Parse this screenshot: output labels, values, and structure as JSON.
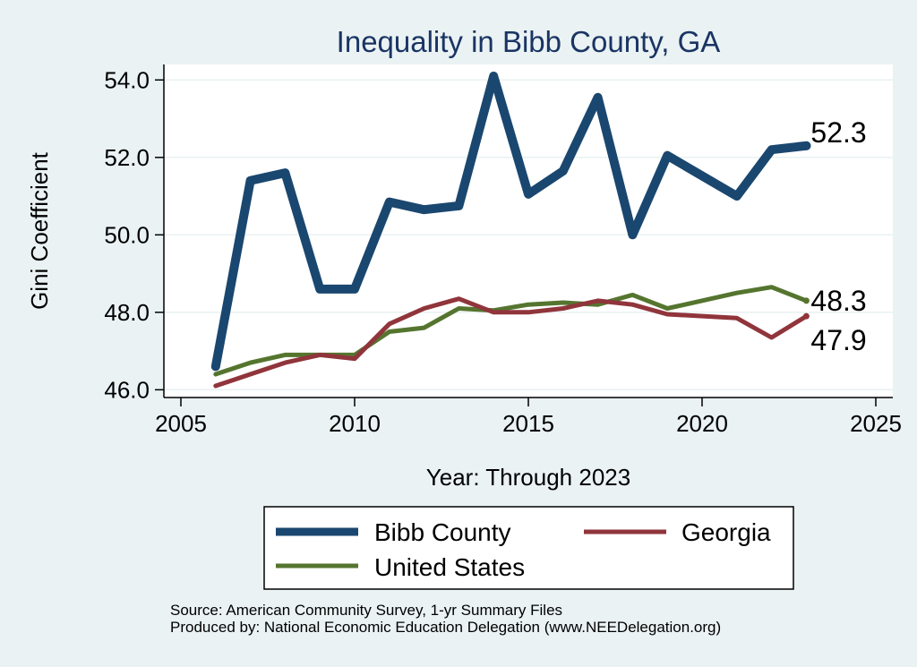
{
  "chart_data": {
    "type": "line",
    "title": "Inequality in Bibb County, GA",
    "xlabel": "Year: Through 2023",
    "ylabel": "Gini Coefficient",
    "xlim": [
      2005,
      2025
    ],
    "ylim": [
      45.8,
      54.4
    ],
    "x_ticks": [
      2005,
      2010,
      2015,
      2020,
      2025
    ],
    "y_ticks": [
      46.0,
      48.0,
      50.0,
      52.0,
      54.0
    ],
    "grid": true,
    "legend_position": "bottom",
    "series": [
      {
        "name": "Bibb County",
        "color": "#1a476f",
        "x": [
          2006,
          2007,
          2008,
          2009,
          2010,
          2011,
          2012,
          2013,
          2014,
          2015,
          2016,
          2017,
          2018,
          2019,
          2021,
          2022,
          2023
        ],
        "values": [
          46.6,
          51.4,
          51.6,
          48.6,
          48.6,
          50.85,
          50.65,
          50.75,
          54.1,
          51.05,
          51.65,
          53.55,
          50.0,
          52.05,
          51.0,
          52.2,
          52.3
        ],
        "end_label": "52.3"
      },
      {
        "name": "Georgia",
        "color": "#90353b",
        "x": [
          2006,
          2007,
          2008,
          2009,
          2010,
          2011,
          2012,
          2013,
          2014,
          2015,
          2016,
          2017,
          2018,
          2019,
          2021,
          2022,
          2023
        ],
        "values": [
          46.1,
          46.4,
          46.7,
          46.9,
          46.8,
          47.7,
          48.1,
          48.35,
          48.0,
          48.0,
          48.1,
          48.3,
          48.2,
          47.95,
          47.85,
          47.35,
          47.9
        ],
        "end_label": "47.9"
      },
      {
        "name": "United States",
        "color": "#55752f",
        "x": [
          2006,
          2007,
          2008,
          2009,
          2010,
          2011,
          2012,
          2013,
          2014,
          2015,
          2016,
          2017,
          2018,
          2019,
          2021,
          2022,
          2023
        ],
        "values": [
          46.4,
          46.7,
          46.9,
          46.9,
          46.9,
          47.5,
          47.6,
          48.1,
          48.05,
          48.2,
          48.25,
          48.2,
          48.45,
          48.1,
          48.5,
          48.65,
          48.3
        ],
        "end_label": "48.3"
      }
    ],
    "source_lines": [
      "Source: American Community Survey, 1-yr Summary Files",
      "Produced by: National Economic Education Delegation (www.NEEDelegation.org)"
    ]
  }
}
